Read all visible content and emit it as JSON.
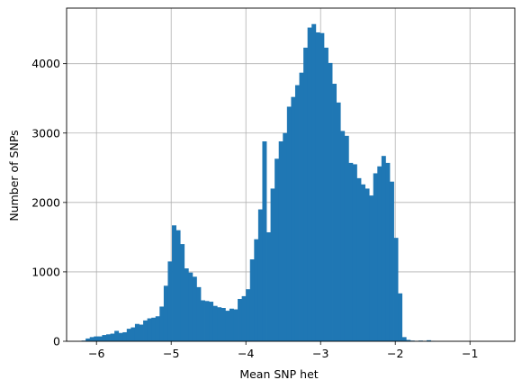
{
  "chart_data": {
    "type": "bar",
    "title": "",
    "xlabel": "Mean SNP het",
    "ylabel": "Number of SNPs",
    "xlim": [
      -6.4,
      -0.4
    ],
    "ylim": [
      0,
      4800
    ],
    "xticks": [
      -6,
      -5,
      -4,
      -3,
      -2,
      -1
    ],
    "xtick_labels": [
      "−6",
      "−5",
      "−4",
      "−3",
      "−2",
      "−1"
    ],
    "yticks": [
      0,
      1000,
      2000,
      3000,
      4000
    ],
    "ytick_labels": [
      "0",
      "1000",
      "2000",
      "3000",
      "4000"
    ],
    "grid": true,
    "bar_color": "#1f77b4",
    "bin_start": -6.2,
    "bin_width": 0.055,
    "values": [
      10,
      40,
      60,
      70,
      70,
      90,
      100,
      110,
      150,
      120,
      130,
      180,
      200,
      250,
      240,
      300,
      330,
      340,
      360,
      500,
      800,
      1150,
      1670,
      1600,
      1400,
      1050,
      990,
      930,
      780,
      590,
      580,
      570,
      510,
      490,
      480,
      440,
      470,
      460,
      610,
      650,
      750,
      1180,
      1470,
      1900,
      2880,
      1570,
      2200,
      2630,
      2880,
      3000,
      3380,
      3520,
      3690,
      3870,
      4230,
      4520,
      4570,
      4450,
      4440,
      4230,
      4010,
      3710,
      3440,
      3030,
      2960,
      2570,
      2550,
      2350,
      2260,
      2200,
      2100,
      2420,
      2520,
      2670,
      2570,
      2300,
      1490,
      690,
      60,
      20,
      10,
      5,
      10,
      5,
      15,
      5
    ]
  }
}
